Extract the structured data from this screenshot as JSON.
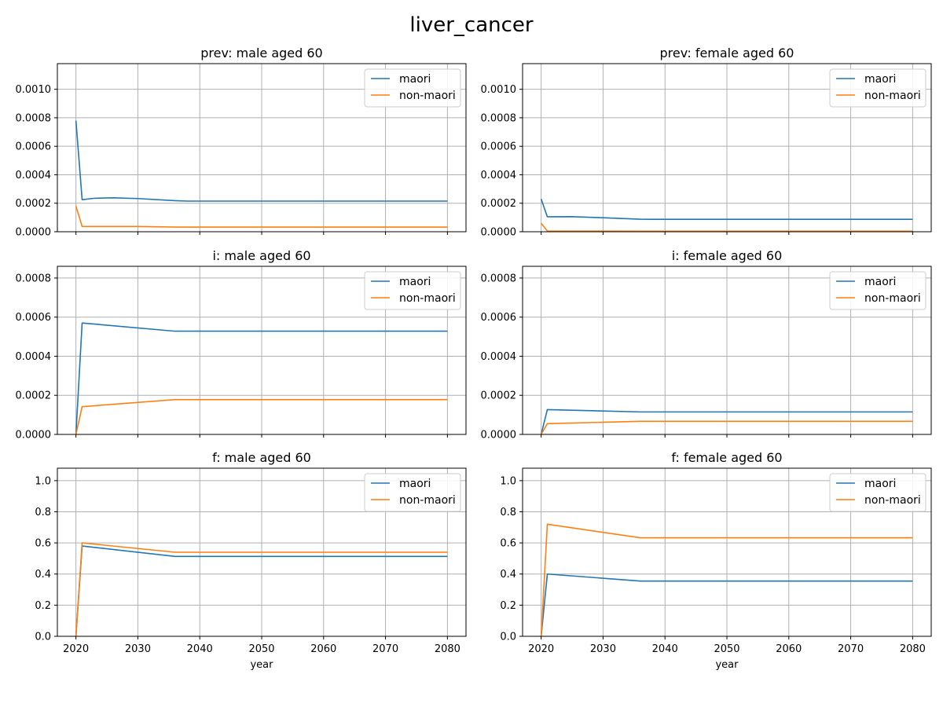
{
  "chart_data": {
    "title": "liver_cancer",
    "colors": {
      "maori": "#1f77b4",
      "non-maori": "#ff7f0e"
    },
    "panels": [
      {
        "type": "line",
        "title": "prev: male aged 60",
        "xlabel": "",
        "xlim": [
          2017,
          2083
        ],
        "ylim": [
          0,
          0.00118
        ],
        "xticks": [
          2020,
          2030,
          2040,
          2050,
          2060,
          2070,
          2080
        ],
        "yticks": [
          0,
          0.0002,
          0.0004,
          0.0006,
          0.0008,
          0.001
        ],
        "ytick_labels": [
          "0.0000",
          "0.0002",
          "0.0004",
          "0.0006",
          "0.0008",
          "0.0010"
        ],
        "show_xtick_labels": false,
        "legend": "top-right",
        "series": [
          {
            "name": "maori",
            "x": [
              2020,
              2021,
              2023,
              2026,
              2030,
              2036,
              2038,
              2080
            ],
            "y": [
              0.00078,
              0.000225,
              0.000235,
              0.000238,
              0.000233,
              0.000218,
              0.000215,
              0.000215
            ]
          },
          {
            "name": "non-maori",
            "x": [
              2020,
              2021,
              2030,
              2036,
              2080
            ],
            "y": [
              0.00018,
              3.7e-05,
              3.7e-05,
              3.3e-05,
              3.3e-05
            ]
          }
        ]
      },
      {
        "type": "line",
        "title": "prev: female aged 60",
        "xlabel": "",
        "xlim": [
          2017,
          2083
        ],
        "ylim": [
          0,
          0.00118
        ],
        "xticks": [
          2020,
          2030,
          2040,
          2050,
          2060,
          2070,
          2080
        ],
        "yticks": [
          0,
          0.0002,
          0.0004,
          0.0006,
          0.0008,
          0.001
        ],
        "ytick_labels": [
          "0.0000",
          "0.0002",
          "0.0004",
          "0.0006",
          "0.0008",
          "0.0010"
        ],
        "show_xtick_labels": false,
        "legend": "top-right",
        "series": [
          {
            "name": "maori",
            "x": [
              2020,
              2021,
              2025,
              2030,
              2036,
              2038,
              2080
            ],
            "y": [
              0.00023,
              0.000105,
              0.000106,
              9.8e-05,
              8.8e-05,
              8.7e-05,
              8.7e-05
            ]
          },
          {
            "name": "non-maori",
            "x": [
              2020,
              2021,
              2036,
              2080
            ],
            "y": [
              6e-05,
              5e-06,
              4e-06,
              4e-06
            ]
          }
        ]
      },
      {
        "type": "line",
        "title": "i: male aged 60",
        "xlabel": "",
        "xlim": [
          2017,
          2083
        ],
        "ylim": [
          0,
          0.00086
        ],
        "xticks": [
          2020,
          2030,
          2040,
          2050,
          2060,
          2070,
          2080
        ],
        "yticks": [
          0,
          0.0002,
          0.0004,
          0.0006,
          0.0008
        ],
        "ytick_labels": [
          "0.0000",
          "0.0002",
          "0.0004",
          "0.0006",
          "0.0008"
        ],
        "show_xtick_labels": false,
        "legend": "top-right",
        "series": [
          {
            "name": "maori",
            "x": [
              2020,
              2021,
              2036,
              2080
            ],
            "y": [
              0,
              0.00057,
              0.000528,
              0.000528
            ]
          },
          {
            "name": "non-maori",
            "x": [
              2020,
              2021,
              2036,
              2080
            ],
            "y": [
              0,
              0.000142,
              0.000178,
              0.000178
            ]
          }
        ]
      },
      {
        "type": "line",
        "title": "i: female aged 60",
        "xlabel": "",
        "xlim": [
          2017,
          2083
        ],
        "ylim": [
          0,
          0.00086
        ],
        "xticks": [
          2020,
          2030,
          2040,
          2050,
          2060,
          2070,
          2080
        ],
        "yticks": [
          0,
          0.0002,
          0.0004,
          0.0006,
          0.0008
        ],
        "ytick_labels": [
          "0.0000",
          "0.0002",
          "0.0004",
          "0.0006",
          "0.0008"
        ],
        "show_xtick_labels": false,
        "legend": "top-right",
        "series": [
          {
            "name": "maori",
            "x": [
              2020,
              2021,
              2036,
              2080
            ],
            "y": [
              0,
              0.000127,
              0.000115,
              0.000115
            ]
          },
          {
            "name": "non-maori",
            "x": [
              2020,
              2021,
              2036,
              2080
            ],
            "y": [
              0,
              5.5e-05,
              6.7e-05,
              6.7e-05
            ]
          }
        ]
      },
      {
        "type": "line",
        "title": "f: male aged 60",
        "xlabel": "year",
        "xlim": [
          2017,
          2083
        ],
        "ylim": [
          0,
          1.08
        ],
        "xticks": [
          2020,
          2030,
          2040,
          2050,
          2060,
          2070,
          2080
        ],
        "xtick_labels": [
          "2020",
          "2030",
          "2040",
          "2050",
          "2060",
          "2070",
          "2080"
        ],
        "yticks": [
          0,
          0.2,
          0.4,
          0.6,
          0.8,
          1.0
        ],
        "ytick_labels": [
          "0.0",
          "0.2",
          "0.4",
          "0.6",
          "0.8",
          "1.0"
        ],
        "show_xtick_labels": true,
        "legend": "top-right",
        "series": [
          {
            "name": "maori",
            "x": [
              2020,
              2021,
              2036,
              2080
            ],
            "y": [
              0,
              0.58,
              0.513,
              0.513
            ]
          },
          {
            "name": "non-maori",
            "x": [
              2020,
              2021,
              2036,
              2080
            ],
            "y": [
              0,
              0.6,
              0.54,
              0.54
            ]
          }
        ]
      },
      {
        "type": "line",
        "title": "f: female aged 60",
        "xlabel": "year",
        "xlim": [
          2017,
          2083
        ],
        "ylim": [
          0,
          1.08
        ],
        "xticks": [
          2020,
          2030,
          2040,
          2050,
          2060,
          2070,
          2080
        ],
        "xtick_labels": [
          "2020",
          "2030",
          "2040",
          "2050",
          "2060",
          "2070",
          "2080"
        ],
        "yticks": [
          0,
          0.2,
          0.4,
          0.6,
          0.8,
          1.0
        ],
        "ytick_labels": [
          "0.0",
          "0.2",
          "0.4",
          "0.6",
          "0.8",
          "1.0"
        ],
        "show_xtick_labels": true,
        "legend": "top-right",
        "series": [
          {
            "name": "maori",
            "x": [
              2020,
              2021,
              2036,
              2080
            ],
            "y": [
              0,
              0.4,
              0.355,
              0.355
            ]
          },
          {
            "name": "non-maori",
            "x": [
              2020,
              2021,
              2036,
              2080
            ],
            "y": [
              0,
              0.72,
              0.633,
              0.633
            ]
          }
        ]
      }
    ]
  }
}
